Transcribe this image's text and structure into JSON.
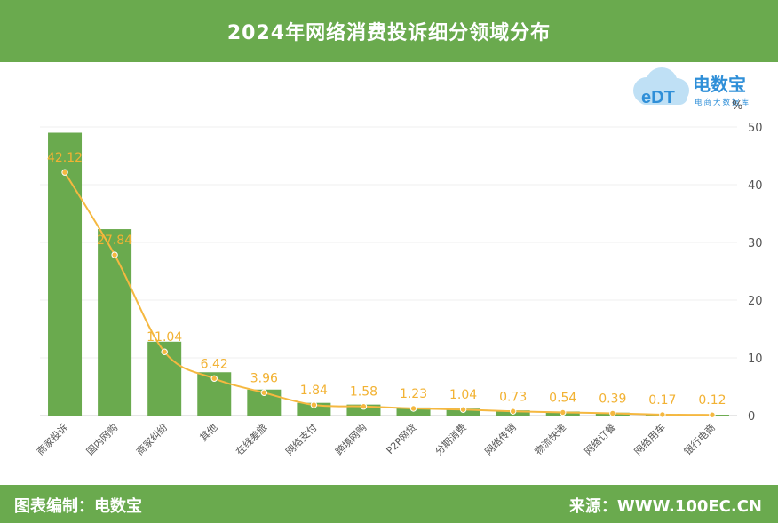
{
  "header": {
    "title": "2024年网络消费投诉细分领域分布"
  },
  "footer": {
    "left": "图表编制：电数宝",
    "right": "来源：WWW.100EC.CN"
  },
  "logo": {
    "letters": "eDT",
    "name": "电数宝",
    "tagline": "电商大数据库"
  },
  "colors": {
    "bar": "#6aaa4e",
    "line": "#f5b840",
    "header": "#6aaa4e"
  },
  "chart_data": {
    "type": "bar",
    "title": "2024年网络消费投诉细分领域分布",
    "unit": "%",
    "ylim": [
      0,
      50
    ],
    "yticks": [
      0,
      10,
      20,
      30,
      40,
      50
    ],
    "categories": [
      "商家投诉",
      "国内网购",
      "商家纠纷",
      "其他",
      "在线差旅",
      "网络支付",
      "跨境网购",
      "P2P网贷",
      "分期消费",
      "网络传销",
      "物流快递",
      "网络订餐",
      "网络用车",
      "银行电商"
    ],
    "series": [
      {
        "type": "bar",
        "values": [
          49,
          32.3,
          12.8,
          7.5,
          4.5,
          2.2,
          1.9,
          1.4,
          1.2,
          0.9,
          0.7,
          0.5,
          0.25,
          0.15
        ]
      },
      {
        "type": "line",
        "values": [
          42.12,
          27.84,
          11.04,
          6.42,
          3.96,
          1.84,
          1.58,
          1.23,
          1.04,
          0.73,
          0.54,
          0.39,
          0.17,
          0.12
        ]
      }
    ],
    "labels": [
      "42.12",
      "27.84",
      "11.04",
      "6.42",
      "3.96",
      "1.84",
      "1.58",
      "1.23",
      "1.04",
      "0.73",
      "0.54",
      "0.39",
      "0.17",
      "0.12"
    ]
  }
}
